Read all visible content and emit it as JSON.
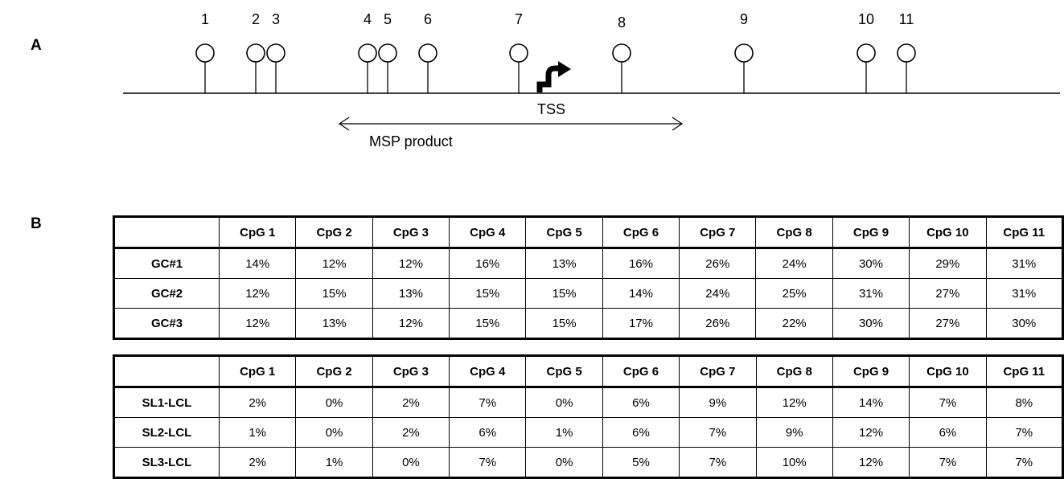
{
  "panel_a": {
    "letter": "A",
    "sites": [
      {
        "label": "1",
        "pos": 255
      },
      {
        "label": "2",
        "pos": 318
      },
      {
        "label": "3",
        "pos": 343
      },
      {
        "label": "4",
        "pos": 457
      },
      {
        "label": "5",
        "pos": 482
      },
      {
        "label": "6",
        "pos": 532
      },
      {
        "label": "7",
        "pos": 645
      },
      {
        "label": "8",
        "pos": 773
      },
      {
        "label": "9",
        "pos": 925
      },
      {
        "label": "10",
        "pos": 1077
      },
      {
        "label": "11",
        "pos": 1127
      }
    ],
    "tss_label": "TSS",
    "msp_label": "MSP product"
  },
  "panel_b": {
    "letter": "B",
    "tables": [
      {
        "columns": [
          "",
          "CpG 1",
          "CpG 2",
          "CpG 3",
          "CpG 4",
          "CpG 5",
          "CpG 6",
          "CpG 7",
          "CpG 8",
          "CpG 9",
          "CpG 10",
          "CpG 11"
        ],
        "rows": [
          {
            "label": "GC#1",
            "values": [
              "14%",
              "12%",
              "12%",
              "16%",
              "13%",
              "16%",
              "26%",
              "24%",
              "30%",
              "29%",
              "31%"
            ]
          },
          {
            "label": "GC#2",
            "values": [
              "12%",
              "15%",
              "13%",
              "15%",
              "15%",
              "14%",
              "24%",
              "25%",
              "31%",
              "27%",
              "31%"
            ]
          },
          {
            "label": "GC#3",
            "values": [
              "12%",
              "13%",
              "12%",
              "15%",
              "15%",
              "17%",
              "26%",
              "22%",
              "30%",
              "27%",
              "30%"
            ]
          }
        ]
      },
      {
        "columns": [
          "",
          "CpG 1",
          "CpG 2",
          "CpG 3",
          "CpG 4",
          "CpG 5",
          "CpG 6",
          "CpG 7",
          "CpG 8",
          "CpG 9",
          "CpG 10",
          "CpG 11"
        ],
        "rows": [
          {
            "label": "SL1-LCL",
            "values": [
              "2%",
              "0%",
              "2%",
              "7%",
              "0%",
              "6%",
              "9%",
              "12%",
              "14%",
              "7%",
              "8%"
            ]
          },
          {
            "label": "SL2-LCL",
            "values": [
              "1%",
              "0%",
              "2%",
              "6%",
              "1%",
              "6%",
              "7%",
              "9%",
              "12%",
              "6%",
              "7%"
            ]
          },
          {
            "label": "SL3-LCL",
            "values": [
              "2%",
              "1%",
              "0%",
              "7%",
              "0%",
              "5%",
              "7%",
              "10%",
              "12%",
              "7%",
              "7%"
            ]
          }
        ]
      }
    ]
  }
}
